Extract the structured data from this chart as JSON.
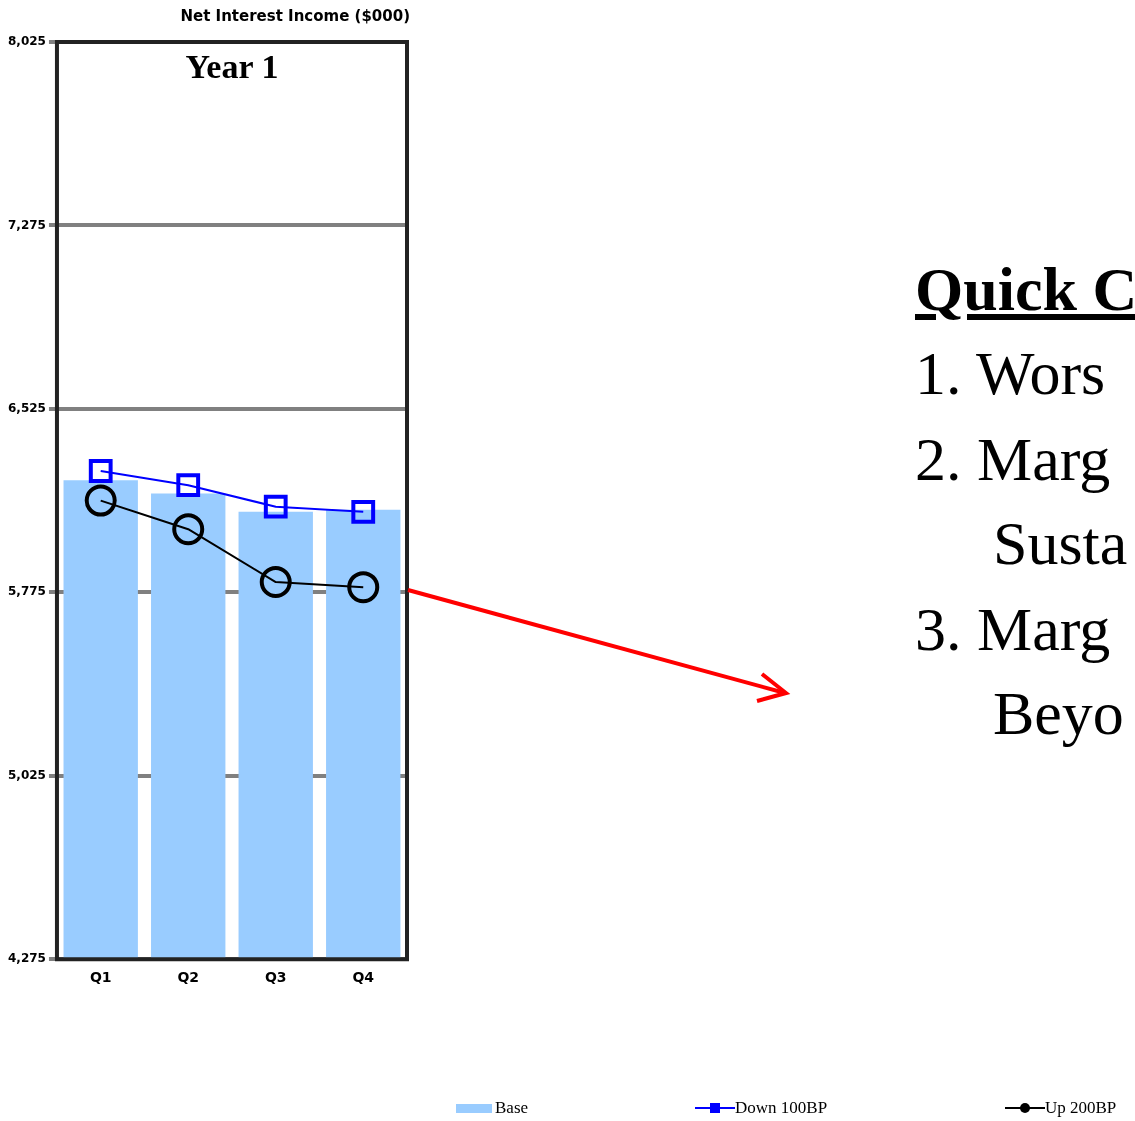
{
  "chart_data": {
    "type": "bar",
    "title": "Net Interest Income ($000)",
    "subtitle": "Year 1",
    "categories": [
      "Q1",
      "Q2",
      "Q3",
      "Q4"
    ],
    "series": [
      {
        "name": "Base",
        "color": "#99ccff",
        "values": [
          6233,
          6179,
          6104,
          6113
        ]
      },
      {
        "name": "Down 100BP",
        "type": "line",
        "color": "#0000ff",
        "marker": "square",
        "values": [
          6271,
          6213,
          6125,
          6104
        ]
      },
      {
        "name": "Up 200BP",
        "type": "line",
        "color": "#000000",
        "marker": "circle",
        "values": [
          6150,
          6033,
          5817,
          5796
        ]
      }
    ],
    "ylim": [
      4275,
      8025
    ],
    "yticks": [
      {
        "value": 4275,
        "label": "4,275"
      },
      {
        "value": 5025,
        "label": "5,025"
      },
      {
        "value": 5775,
        "label": "5,775"
      },
      {
        "value": 6525,
        "label": "6,525"
      },
      {
        "value": 7275,
        "label": "7,275"
      },
      {
        "value": 8025,
        "label": "8,025"
      }
    ],
    "grid": "y",
    "legend": "bottom",
    "annotations": [
      "Quick C",
      "1. Wors",
      "2. Marg",
      "Susta",
      "3. Marg",
      "Beyo"
    ]
  }
}
